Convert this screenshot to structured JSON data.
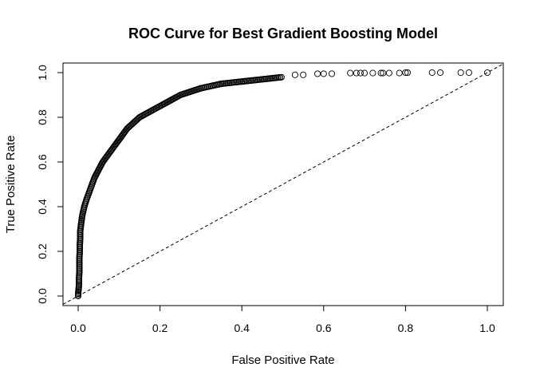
{
  "chart_data": {
    "type": "scatter",
    "title": "ROC Curve for Best Gradient Boosting Model",
    "xlabel": "False Positive Rate",
    "ylabel": "True Positive Rate",
    "xlim": [
      0,
      1
    ],
    "ylim": [
      0,
      1
    ],
    "x_ticks": [
      "0.0",
      "0.2",
      "0.4",
      "0.6",
      "0.8",
      "1.0"
    ],
    "y_ticks": [
      "0.0",
      "0.2",
      "0.4",
      "0.6",
      "0.8",
      "1.0"
    ],
    "grid": false,
    "legend": "none",
    "marker": "open-circle",
    "reference_line": {
      "style": "dashed",
      "from": [
        0,
        0
      ],
      "to": [
        1,
        1
      ]
    },
    "curve_points": [
      [
        0.0,
        0.0
      ],
      [
        0.0,
        0.01
      ],
      [
        0.002,
        0.05
      ],
      [
        0.002,
        0.08
      ],
      [
        0.003,
        0.11
      ],
      [
        0.003,
        0.14
      ],
      [
        0.003,
        0.17
      ],
      [
        0.004,
        0.2
      ],
      [
        0.004,
        0.23
      ],
      [
        0.005,
        0.26
      ],
      [
        0.005,
        0.29
      ],
      [
        0.007,
        0.32
      ],
      [
        0.01,
        0.36
      ],
      [
        0.015,
        0.4
      ],
      [
        0.02,
        0.43
      ],
      [
        0.03,
        0.48
      ],
      [
        0.04,
        0.53
      ],
      [
        0.06,
        0.6
      ],
      [
        0.08,
        0.65
      ],
      [
        0.1,
        0.7
      ],
      [
        0.12,
        0.75
      ],
      [
        0.15,
        0.8
      ],
      [
        0.18,
        0.83
      ],
      [
        0.21,
        0.86
      ],
      [
        0.25,
        0.9
      ],
      [
        0.3,
        0.93
      ],
      [
        0.35,
        0.95
      ],
      [
        0.4,
        0.96
      ],
      [
        0.45,
        0.97
      ],
      [
        0.5,
        0.98
      ],
      [
        0.55,
        0.99
      ],
      [
        0.6,
        0.995
      ],
      [
        0.65,
        0.998
      ],
      [
        0.7,
        0.998
      ],
      [
        0.75,
        0.999
      ],
      [
        0.8,
        1.0
      ],
      [
        0.87,
        1.0
      ],
      [
        0.94,
        1.0
      ],
      [
        1.0,
        1.0
      ]
    ],
    "sparse_points": [
      [
        0.53,
        0.99
      ],
      [
        0.55,
        0.99
      ],
      [
        0.585,
        0.995
      ],
      [
        0.6,
        0.995
      ],
      [
        0.62,
        0.995
      ],
      [
        0.665,
        0.998
      ],
      [
        0.68,
        0.998
      ],
      [
        0.69,
        0.998
      ],
      [
        0.7,
        0.998
      ],
      [
        0.72,
        0.998
      ],
      [
        0.74,
        0.998
      ],
      [
        0.745,
        0.998
      ],
      [
        0.76,
        0.998
      ],
      [
        0.785,
        0.998
      ],
      [
        0.8,
        1.0
      ],
      [
        0.805,
        1.0
      ],
      [
        0.865,
        1.0
      ],
      [
        0.885,
        1.0
      ],
      [
        0.935,
        1.0
      ],
      [
        0.955,
        1.0
      ],
      [
        1.0,
        1.0
      ]
    ]
  }
}
